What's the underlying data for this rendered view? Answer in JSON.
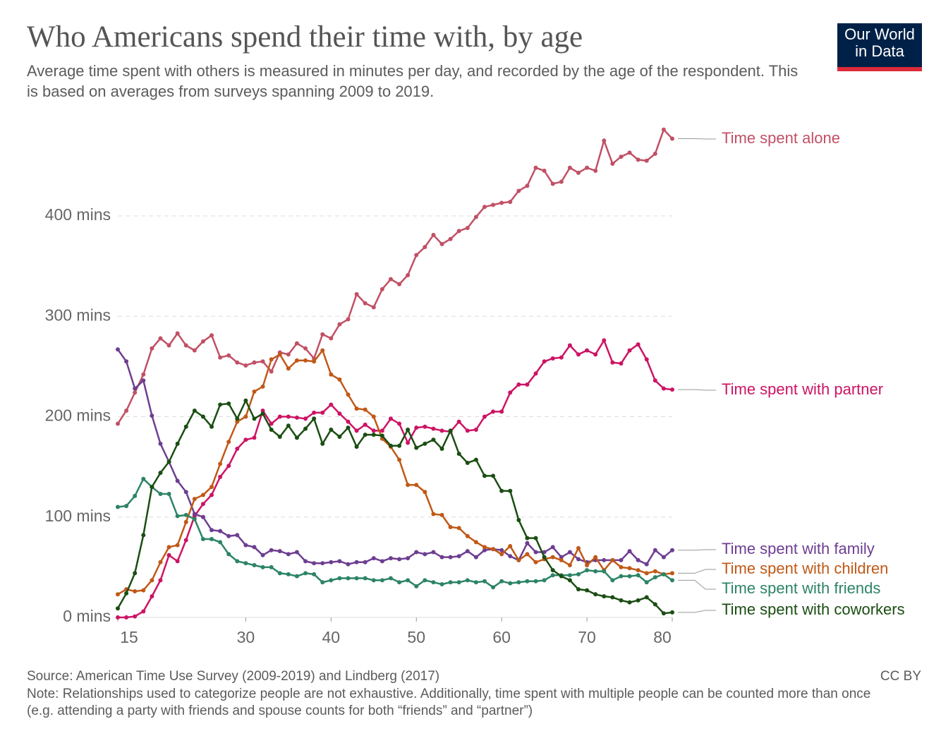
{
  "chart_data": {
    "type": "line",
    "title": "Who Americans spend their time with, by age",
    "subtitle": "Average time spent with others is measured in minutes per day, and recorded by the age of the respondent. This is based on averages from surveys spanning 2009 to 2019.",
    "logo": "Our World in Data",
    "source": "Source: American Time Use Survey (2009-2019) and Lindberg (2017)",
    "license": "CC BY",
    "note": "Note: Relationships used to categorize people are not exhaustive. Additionally, time spent with multiple people can be counted more than once (e.g. attending a party with friends and spouse counts for both “friends” and “partner”)",
    "x": [
      15,
      16,
      17,
      18,
      19,
      20,
      21,
      22,
      23,
      24,
      25,
      26,
      27,
      28,
      29,
      30,
      31,
      32,
      33,
      34,
      35,
      36,
      37,
      38,
      39,
      40,
      41,
      42,
      43,
      44,
      45,
      46,
      47,
      48,
      49,
      50,
      51,
      52,
      53,
      54,
      55,
      56,
      57,
      58,
      59,
      60,
      61,
      62,
      63,
      64,
      65,
      66,
      67,
      68,
      69,
      70,
      71,
      72,
      73,
      74,
      75,
      76,
      77,
      78,
      79,
      80
    ],
    "xlim": [
      15,
      80
    ],
    "xticks": [
      15,
      30,
      40,
      50,
      60,
      70,
      80
    ],
    "ylim": [
      0,
      490
    ],
    "yticks": [
      {
        "value": 0,
        "label": "0 mins"
      },
      {
        "value": 100,
        "label": "100 mins"
      },
      {
        "value": 200,
        "label": "200 mins"
      },
      {
        "value": 300,
        "label": "300 mins"
      },
      {
        "value": 400,
        "label": "400 mins"
      }
    ],
    "grid": true,
    "series": [
      {
        "name": "Time spent alone",
        "color": "#c15065",
        "values": [
          193,
          206,
          224,
          242,
          268,
          278,
          271,
          283,
          271,
          266,
          275,
          281,
          259,
          261,
          254,
          251,
          254,
          255,
          245,
          264,
          262,
          273,
          268,
          258,
          282,
          278,
          292,
          297,
          322,
          313,
          309,
          327,
          337,
          332,
          341,
          361,
          369,
          381,
          372,
          377,
          385,
          388,
          399,
          409,
          411,
          413,
          414,
          425,
          430,
          448,
          445,
          432,
          434,
          448,
          443,
          448,
          445,
          475,
          452,
          459,
          463,
          456,
          455,
          462,
          486,
          477
        ]
      },
      {
        "name": "Time spent with partner",
        "color": "#cc1464",
        "values": [
          0,
          0,
          1,
          6,
          21,
          37,
          62,
          56,
          77,
          101,
          113,
          122,
          140,
          151,
          168,
          177,
          179,
          206,
          193,
          200,
          200,
          199,
          198,
          204,
          204,
          212,
          203,
          195,
          186,
          192,
          186,
          186,
          198,
          193,
          174,
          189,
          190,
          188,
          186,
          185,
          195,
          186,
          187,
          200,
          205,
          205,
          224,
          232,
          232,
          243,
          255,
          258,
          259,
          271,
          262,
          266,
          262,
          276,
          254,
          253,
          266,
          272,
          257,
          236,
          228,
          227
        ]
      },
      {
        "name": "Time spent with family",
        "color": "#6d3e91",
        "values": [
          267,
          255,
          228,
          236,
          201,
          173,
          155,
          136,
          125,
          103,
          100,
          87,
          86,
          81,
          82,
          72,
          70,
          62,
          67,
          66,
          63,
          65,
          56,
          54,
          54,
          55,
          56,
          53,
          55,
          55,
          59,
          56,
          59,
          58,
          59,
          65,
          63,
          65,
          60,
          60,
          61,
          66,
          60,
          67,
          68,
          67,
          61,
          57,
          74,
          65,
          65,
          70,
          60,
          65,
          58,
          55,
          57,
          57,
          57,
          57,
          66,
          57,
          53,
          67,
          60,
          67
        ]
      },
      {
        "name": "Time spent with children",
        "color": "#c05917",
        "values": [
          23,
          28,
          26,
          27,
          37,
          55,
          70,
          72,
          95,
          118,
          122,
          130,
          153,
          175,
          195,
          200,
          225,
          230,
          257,
          262,
          248,
          256,
          256,
          255,
          266,
          242,
          237,
          222,
          208,
          207,
          200,
          178,
          170,
          157,
          132,
          132,
          125,
          103,
          102,
          90,
          89,
          81,
          75,
          70,
          68,
          63,
          71,
          57,
          63,
          55,
          58,
          60,
          57,
          52,
          69,
          52,
          60,
          47,
          57,
          50,
          49,
          47,
          44,
          46,
          43,
          44
        ]
      },
      {
        "name": "Time spent with friends",
        "color": "#2c8465",
        "values": [
          110,
          111,
          121,
          138,
          130,
          123,
          123,
          101,
          102,
          98,
          78,
          78,
          75,
          63,
          56,
          54,
          52,
          50,
          50,
          44,
          43,
          41,
          44,
          43,
          35,
          37,
          39,
          39,
          39,
          39,
          37,
          37,
          39,
          35,
          37,
          31,
          37,
          35,
          33,
          35,
          35,
          37,
          35,
          36,
          30,
          36,
          34,
          35,
          36,
          36,
          37,
          42,
          42,
          42,
          43,
          47,
          46,
          46,
          37,
          41,
          41,
          42,
          35,
          40,
          43,
          37
        ]
      },
      {
        "name": "Time spent with coworkers",
        "color": "#1a4e12",
        "values": [
          9,
          24,
          44,
          82,
          130,
          144,
          155,
          173,
          190,
          206,
          200,
          190,
          212,
          213,
          198,
          216,
          198,
          203,
          187,
          180,
          191,
          179,
          188,
          198,
          173,
          187,
          180,
          189,
          170,
          182,
          182,
          181,
          171,
          171,
          187,
          169,
          173,
          177,
          168,
          186,
          163,
          154,
          157,
          141,
          141,
          126,
          126,
          97,
          79,
          79,
          60,
          47,
          41,
          37,
          28,
          27,
          23,
          21,
          20,
          17,
          15,
          17,
          20,
          13,
          4,
          5
        ]
      }
    ]
  }
}
